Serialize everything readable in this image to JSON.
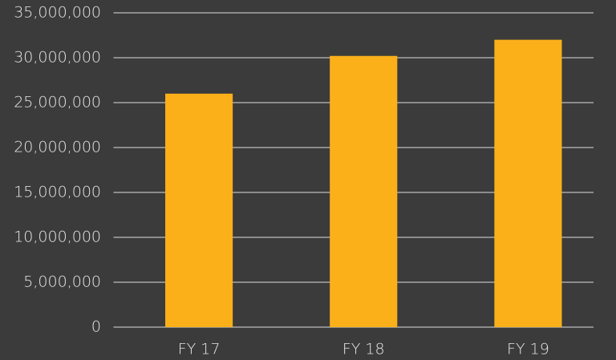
{
  "chart_data": {
    "type": "bar",
    "categories": [
      "FY 17",
      "FY 18",
      "FY 19"
    ],
    "values": [
      26000000,
      30200000,
      32000000
    ],
    "color": "#fbb01a",
    "ylim": [
      0,
      35000000
    ],
    "yticks": [
      0,
      {
        "value": 5000000,
        "label": "5,000,000"
      },
      {
        "value": 10000000,
        "label": "10,000,000"
      },
      {
        "value": 15000000,
        "label": "15,000,000"
      },
      {
        "value": 20000000,
        "label": "20,000,000"
      },
      {
        "value": 25000000,
        "label": "25,000,000"
      },
      {
        "value": 30000000,
        "label": "30,000,000"
      },
      {
        "value": 35000000,
        "label": "35,000,000"
      }
    ],
    "grid": true
  }
}
